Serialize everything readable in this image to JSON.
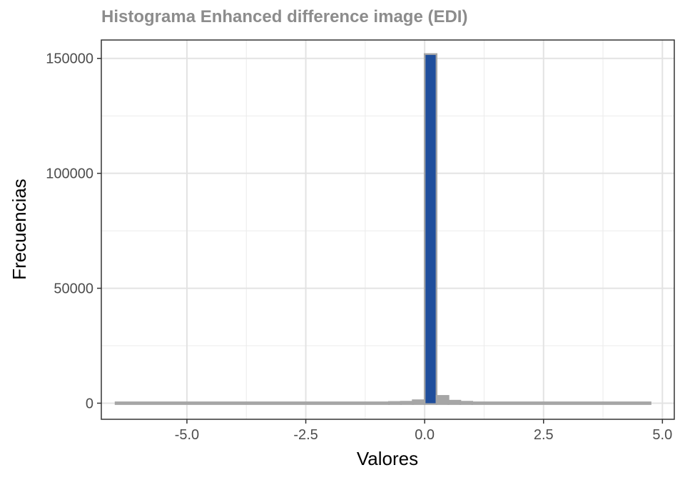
{
  "chart_data": {
    "type": "bar",
    "title": "Histograma Enhanced difference image (EDI)",
    "xlabel": "Valores",
    "ylabel": "Frecuencias",
    "xlim": [
      -6.8,
      5.25
    ],
    "ylim": [
      -7000,
      158000
    ],
    "x_ticks": [
      "-5.0",
      "-2.5",
      "0.0",
      "2.5",
      "5.0"
    ],
    "x_tick_values": [
      -5.0,
      -2.5,
      0.0,
      2.5,
      5.0
    ],
    "y_ticks": [
      "0",
      "50000",
      "100000",
      "150000"
    ],
    "y_tick_values": [
      0,
      50000,
      100000,
      150000
    ],
    "grid": true,
    "bin_width": 0.25,
    "bins": [
      {
        "x0": -6.5,
        "x1": -0.75,
        "count": 0
      },
      {
        "x0": -0.75,
        "x1": -0.5,
        "count": 150
      },
      {
        "x0": -0.5,
        "x1": -0.25,
        "count": 250
      },
      {
        "x0": -0.25,
        "x1": 0.0,
        "count": 900
      },
      {
        "x0": 0.0,
        "x1": 0.25,
        "count": 151500,
        "highlight": true
      },
      {
        "x0": 0.25,
        "x1": 0.5,
        "count": 2800
      },
      {
        "x0": 0.5,
        "x1": 0.75,
        "count": 700
      },
      {
        "x0": 0.75,
        "x1": 1.0,
        "count": 250
      },
      {
        "x0": 1.0,
        "x1": 4.75,
        "count": 0
      }
    ],
    "colors": {
      "highlight_fill": "#1f4e9c",
      "bar_fill": "#a6a6a6",
      "bar_outline": "#a6a6a6"
    }
  }
}
